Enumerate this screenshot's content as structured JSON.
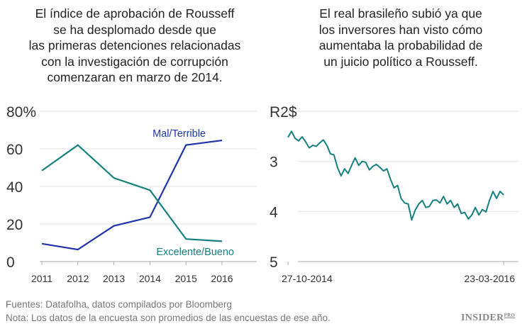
{
  "chart_data": [
    {
      "type": "line",
      "title": [
        "El índice de aprobación de Rousseff",
        "se ha desplomado desde que",
        "las primeras detenciones relacionadas",
        "con la investigación de corrupción",
        "comenzaran en marzo de 2014."
      ],
      "categories": [
        "2011",
        "2012",
        "2013",
        "2014",
        "2015",
        "2016"
      ],
      "ylim": [
        0,
        80
      ],
      "yticks": [
        "0",
        "20",
        "40",
        "60",
        "80%"
      ],
      "grid": true,
      "series": [
        {
          "name": "Mal/Terrible",
          "color": "#1f35a8",
          "values": [
            9.5,
            6.4,
            19,
            23.6,
            62,
            64.5
          ]
        },
        {
          "name": "Excelente/Bueno",
          "color": "#16807f",
          "values": [
            48.4,
            62,
            44.5,
            38,
            12,
            10.8
          ]
        }
      ]
    },
    {
      "type": "line",
      "title": [
        "El real brasileño subió ya que",
        "los inversores han visto cómo",
        "aumentaba la probabilidad de",
        "un juicio político a Rousseff."
      ],
      "ylim": [
        2,
        5
      ],
      "y_inverted": true,
      "yticks": [
        "R2$",
        "3",
        "4",
        "5"
      ],
      "xticks": [
        "27-10-2014",
        "23-03-2016"
      ],
      "grid": true,
      "color": "#16807f",
      "values": [
        2.52,
        2.4,
        2.54,
        2.59,
        2.51,
        2.61,
        2.73,
        2.68,
        2.7,
        2.63,
        2.57,
        2.68,
        2.85,
        2.87,
        3.12,
        3.29,
        3.15,
        3.24,
        3.08,
        2.93,
        3.08,
        3.0,
        3.02,
        3.17,
        3.1,
        3.06,
        3.12,
        3.19,
        3.15,
        3.36,
        3.53,
        3.48,
        3.74,
        3.83,
        3.85,
        4.17,
        3.97,
        3.85,
        3.78,
        3.92,
        3.9,
        3.78,
        3.77,
        3.83,
        3.7,
        3.85,
        3.78,
        3.92,
        3.85,
        4.04,
        4.02,
        4.15,
        4.07,
        3.92,
        4.07,
        3.96,
        4.01,
        3.78,
        3.6,
        3.74,
        3.6,
        3.67
      ]
    }
  ],
  "footer": {
    "sources": "Fuentes: Datafolha, datos compilados por Bloomberg",
    "note": "Nota: Los datos de la encuesta son promedios de las encuestas de ese año."
  },
  "logo": {
    "main": "INSIDER",
    "sub": "PRO"
  }
}
